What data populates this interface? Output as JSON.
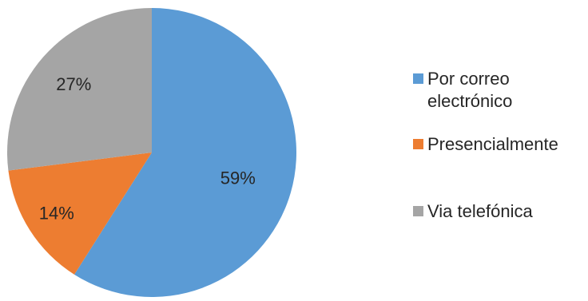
{
  "chart_data": {
    "type": "pie",
    "title": "",
    "categories": [
      "Por correo electrónico",
      "Presencialmente",
      "Via telefónica"
    ],
    "values": [
      59,
      14,
      27
    ],
    "unit": "%",
    "data_labels": [
      "59%",
      "14%",
      "27%"
    ],
    "colors": [
      "#5B9BD5",
      "#ED7D31",
      "#A5A5A5"
    ],
    "start_angle_deg": 0,
    "direction": "clockwise",
    "legend": {
      "placement": "right",
      "items": [
        {
          "lines": [
            "Por correo",
            "electrónico"
          ],
          "color": "#5B9BD5"
        },
        {
          "lines": [
            "Presencialmente"
          ],
          "color": "#ED7D31"
        },
        {
          "lines": [
            "Via telefónica"
          ],
          "color": "#A5A5A5"
        }
      ]
    },
    "grid": false
  }
}
